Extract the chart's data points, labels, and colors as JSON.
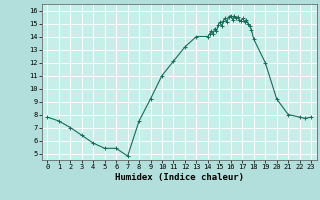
{
  "xlabel": "Humidex (Indice chaleur)",
  "background_color": "#b2dfdb",
  "plot_bg_color": "#c8eeea",
  "grid_color": "#ffffff",
  "line_color": "#1a6b5a",
  "xlim": [
    -0.5,
    23.5
  ],
  "ylim": [
    4.5,
    16.5
  ],
  "yticks": [
    5,
    6,
    7,
    8,
    9,
    10,
    11,
    12,
    13,
    14,
    15,
    16
  ],
  "xticks": [
    0,
    1,
    2,
    3,
    4,
    5,
    6,
    7,
    8,
    9,
    10,
    11,
    12,
    13,
    14,
    15,
    16,
    17,
    18,
    19,
    20,
    21,
    22,
    23
  ],
  "x_smooth": [
    0,
    1,
    2,
    3,
    4,
    5,
    6,
    7,
    8,
    9,
    10,
    11,
    12,
    13
  ],
  "y_smooth": [
    7.8,
    7.5,
    7.0,
    6.4,
    5.8,
    5.4,
    5.4,
    4.8,
    7.5,
    9.2,
    11.0,
    12.1,
    13.2,
    14.0
  ],
  "x_noisy": [
    14,
    14.15,
    14.3,
    14.45,
    14.6,
    14.75,
    14.9,
    15.05,
    15.2,
    15.35,
    15.5,
    15.65,
    15.8,
    16.0,
    16.15,
    16.3,
    16.45,
    16.6,
    16.75,
    16.9,
    17.05,
    17.2,
    17.35,
    17.5,
    17.65,
    17.8,
    18.0
  ],
  "y_noisy": [
    14.0,
    14.2,
    14.4,
    14.2,
    14.6,
    14.4,
    14.9,
    15.1,
    14.8,
    15.2,
    15.4,
    15.1,
    15.5,
    15.6,
    15.3,
    15.6,
    15.4,
    15.5,
    15.3,
    15.2,
    15.4,
    15.1,
    15.3,
    15.0,
    14.8,
    14.5,
    13.8
  ],
  "x_end": [
    19,
    20,
    21,
    22,
    22.5,
    23
  ],
  "y_end": [
    12.0,
    9.2,
    8.0,
    7.8,
    7.7,
    7.8
  ]
}
